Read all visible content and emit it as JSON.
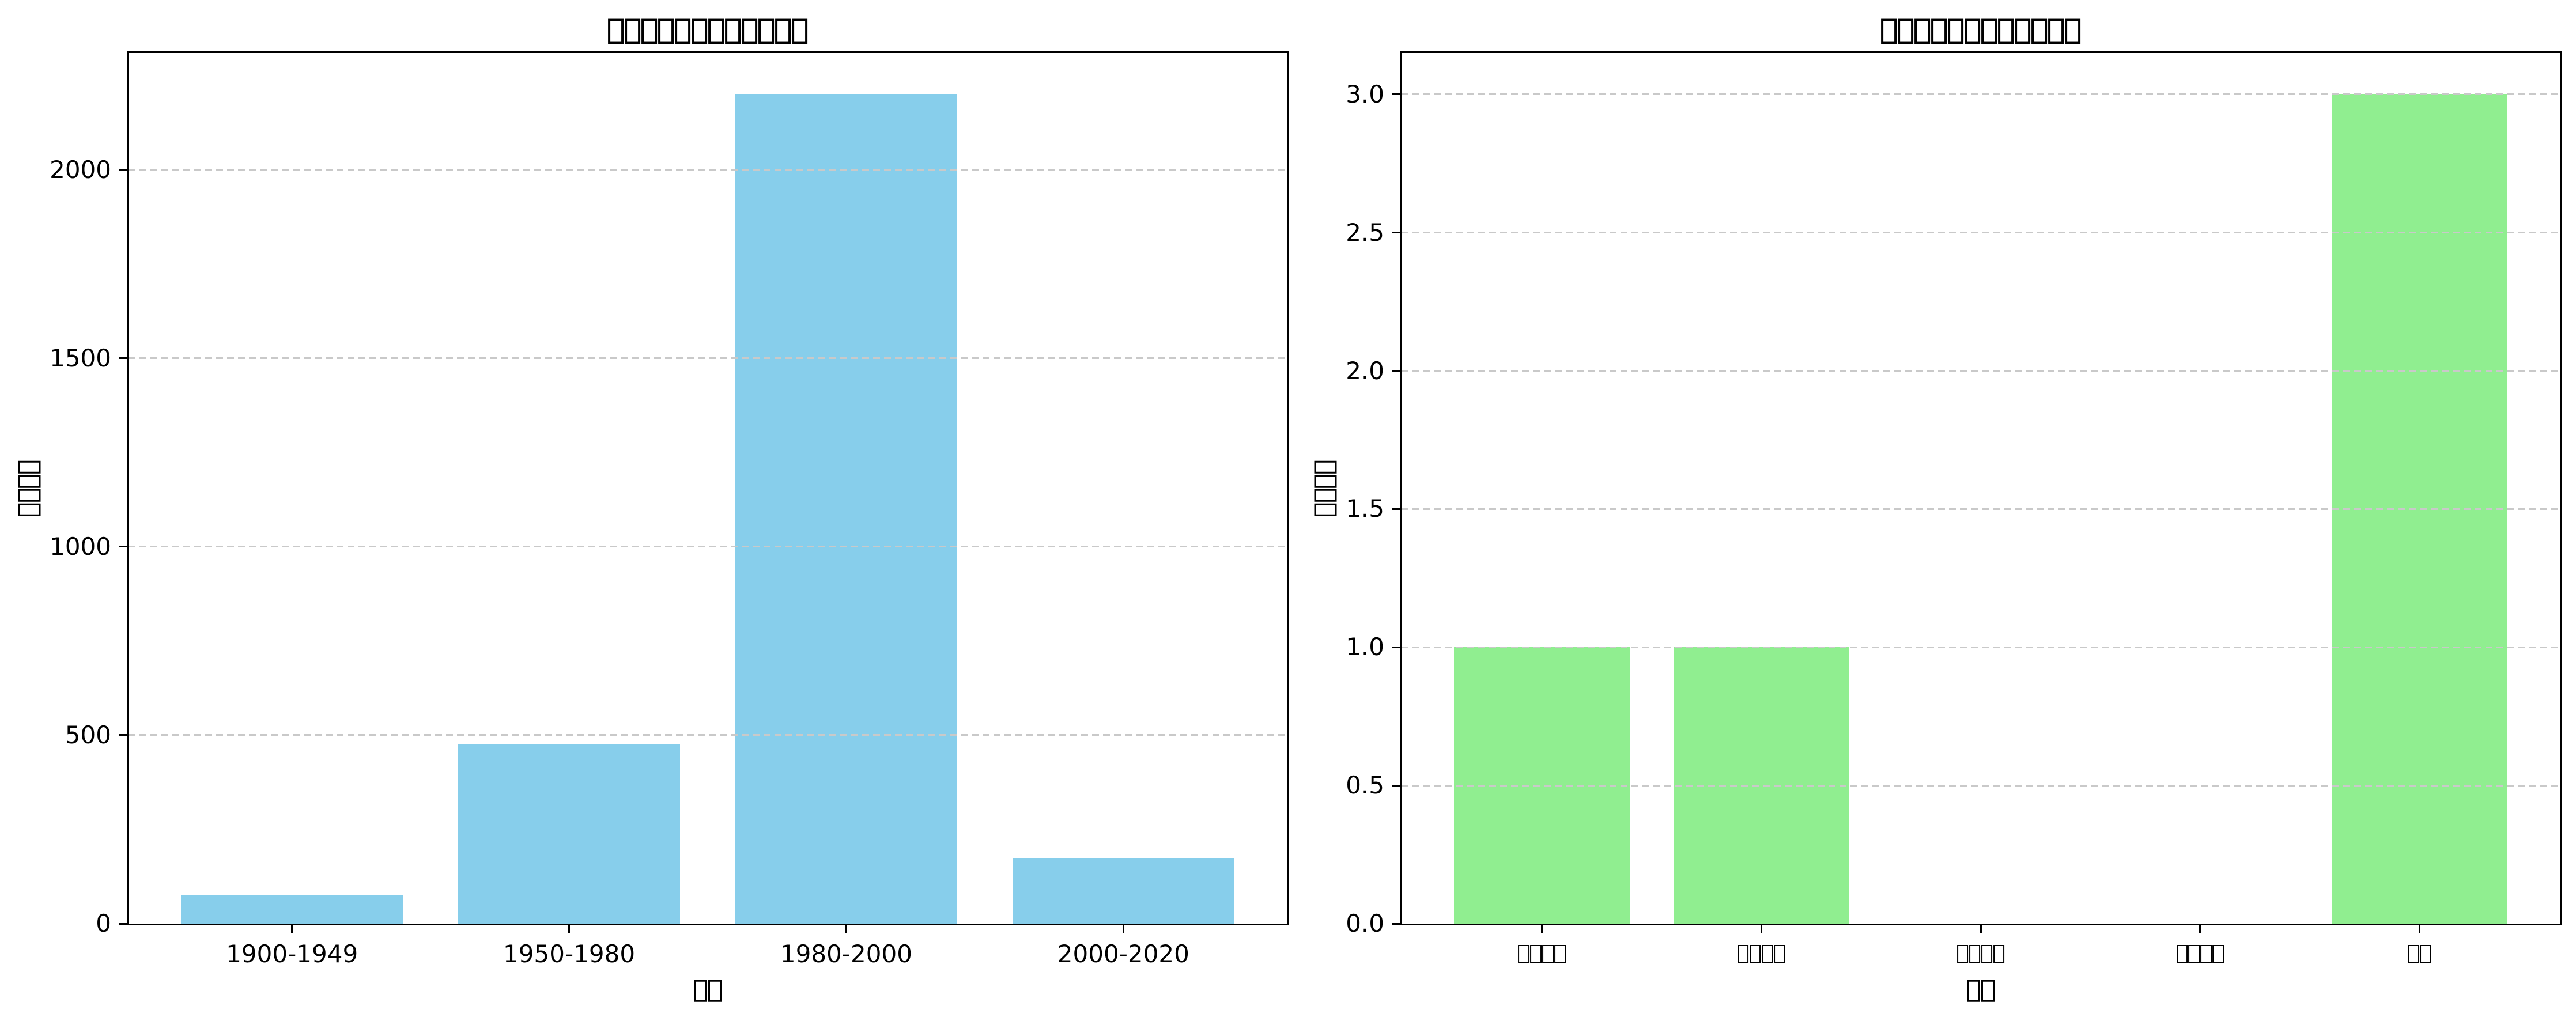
{
  "figure": {
    "background": "#ffffff"
  },
  "chart_data": [
    {
      "type": "bar",
      "title": "▯▯▯▯▯▯▯▯▯▯▯▯",
      "xlabel": "▯▯",
      "ylabel": "▯▯▯▯",
      "categories": [
        "1900-1949",
        "1950-1980",
        "1980-2000",
        "2000-2020"
      ],
      "values": [
        75,
        475,
        2200,
        175
      ],
      "ylim": [
        0,
        2310
      ],
      "yticks": [
        0,
        500,
        1000,
        1500,
        2000
      ],
      "ytick_labels": [
        "0",
        "500",
        "1000",
        "1500",
        "2000"
      ],
      "bar_color": "#87CEEB",
      "grid": {
        "axis": "y",
        "style": "dashed",
        "color": "#c9c9c9",
        "above_bars": true
      },
      "legend": "none"
    },
    {
      "type": "bar",
      "title": "▯▯▯▯▯▯▯▯▯▯▯▯",
      "xlabel": "▯▯",
      "ylabel": "▯▯▯▯",
      "categories": [
        "▯▯▯▯",
        "▯▯▯▯",
        "▯▯▯▯",
        "▯▯▯▯",
        "▯▯"
      ],
      "values": [
        1,
        1,
        0,
        0,
        3
      ],
      "ylim": [
        0,
        3.15
      ],
      "yticks": [
        0,
        0.5,
        1,
        1.5,
        2,
        2.5,
        3
      ],
      "ytick_labels": [
        "0.0",
        "0.5",
        "1.0",
        "1.5",
        "2.0",
        "2.5",
        "3.0"
      ],
      "bar_color": "#90EE90",
      "grid": {
        "axis": "y",
        "style": "dashed",
        "color": "#c9c9c9",
        "above_bars": true
      },
      "legend": "none"
    }
  ]
}
